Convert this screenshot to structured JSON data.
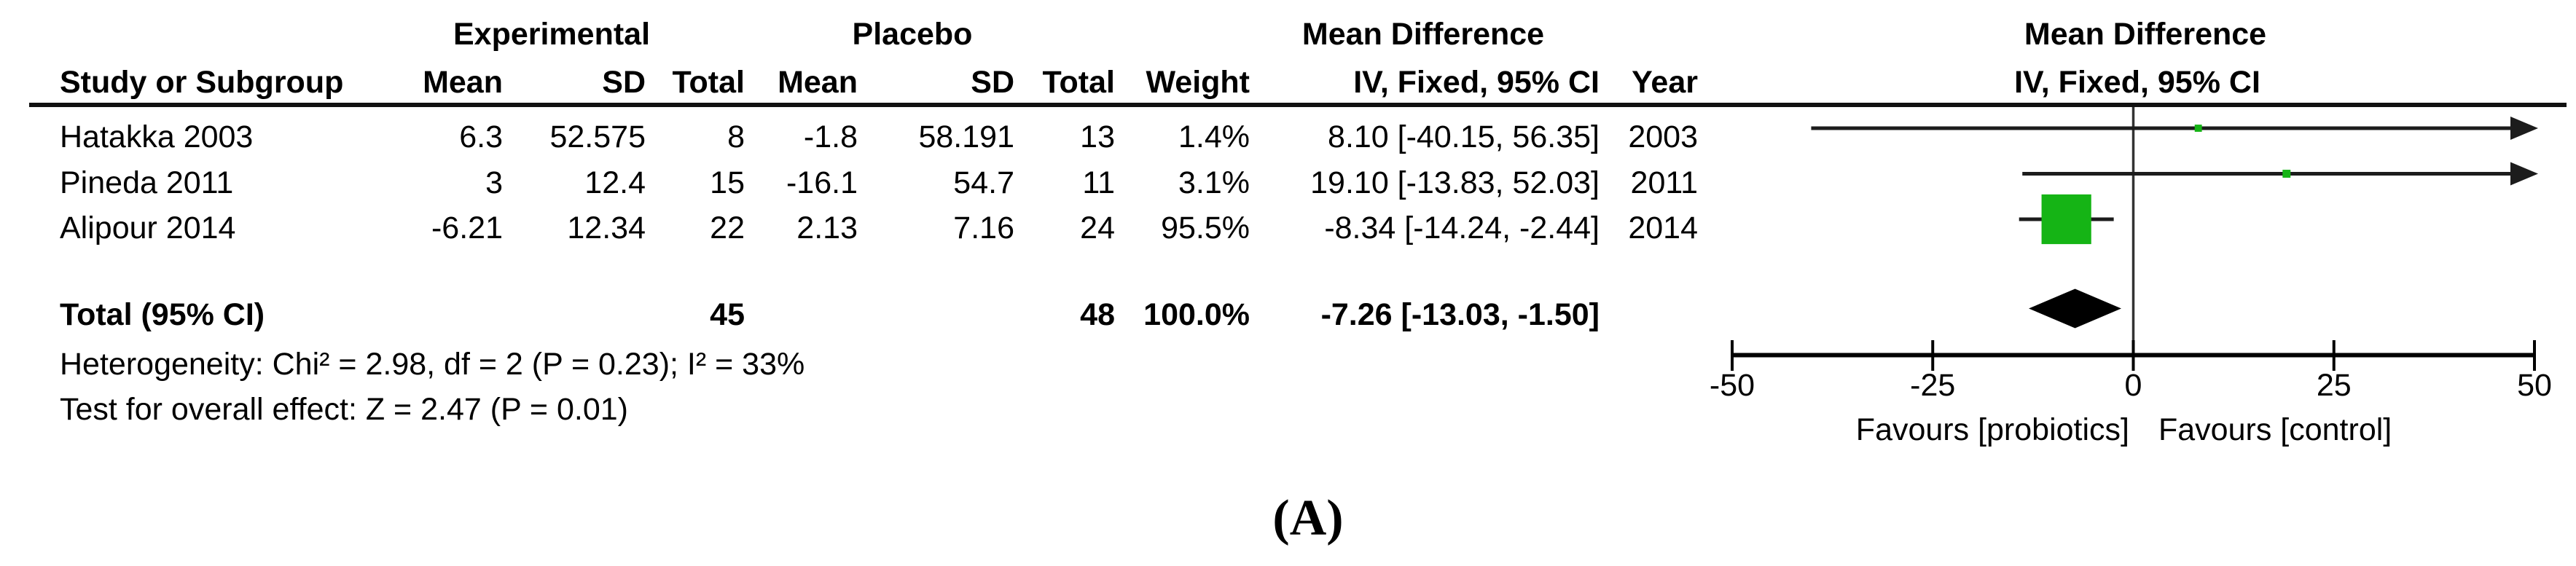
{
  "table": {
    "group_headers": {
      "experimental": "Experimental",
      "placebo": "Placebo",
      "mean_difference": "Mean Difference",
      "mean_difference_plot": "Mean Difference"
    },
    "columns": {
      "study": "Study or Subgroup",
      "mean1": "Mean",
      "sd1": "SD",
      "total1": "Total",
      "mean2": "Mean",
      "sd2": "SD",
      "total2": "Total",
      "weight": "Weight",
      "ci": "IV, Fixed, 95% CI",
      "year": "Year",
      "ci_plot": "IV, Fixed, 95% CI"
    },
    "rows": [
      {
        "study": "Hatakka 2003",
        "mean1": "6.3",
        "sd1": "52.575",
        "total1": "8",
        "mean2": "-1.8",
        "sd2": "58.191",
        "total2": "13",
        "weight": "1.4%",
        "ci": "8.10 [-40.15, 56.35]",
        "year": "2003"
      },
      {
        "study": "Pineda 2011",
        "mean1": "3",
        "sd1": "12.4",
        "total1": "15",
        "mean2": "-16.1",
        "sd2": "54.7",
        "total2": "11",
        "weight": "3.1%",
        "ci": "19.10 [-13.83, 52.03]",
        "year": "2011"
      },
      {
        "study": "Alipour 2014",
        "mean1": "-6.21",
        "sd1": "12.34",
        "total1": "22",
        "mean2": "2.13",
        "sd2": "7.16",
        "total2": "24",
        "weight": "95.5%",
        "ci": "-8.34 [-14.24, -2.44]",
        "year": "2014"
      }
    ],
    "total_row": {
      "label": "Total (95% CI)",
      "total1": "45",
      "total2": "48",
      "weight": "100.0%",
      "ci": "-7.26 [-13.03, -1.50]"
    },
    "footnotes": {
      "heterogeneity": "Heterogeneity: Chi² = 2.98, df = 2 (P = 0.23); I² = 33%",
      "overall_effect": "Test for overall effect: Z = 2.47 (P = 0.01)"
    }
  },
  "figure_label": "(A)",
  "colors": {
    "marker_green": "#15b415",
    "line_black": "#1c1c1c"
  },
  "chart_data": {
    "type": "forest",
    "effect_measure": "Mean Difference",
    "model": "IV, Fixed, 95% CI",
    "studies": [
      {
        "name": "Hatakka 2003",
        "year": 2003,
        "estimate": 8.1,
        "ci_low": -40.15,
        "ci_high": 56.35,
        "weight_pct": 1.4,
        "experimental": {
          "mean": 6.3,
          "sd": 52.575,
          "total": 8
        },
        "placebo": {
          "mean": -1.8,
          "sd": 58.191,
          "total": 13
        }
      },
      {
        "name": "Pineda 2011",
        "year": 2011,
        "estimate": 19.1,
        "ci_low": -13.83,
        "ci_high": 52.03,
        "weight_pct": 3.1,
        "experimental": {
          "mean": 3,
          "sd": 12.4,
          "total": 15
        },
        "placebo": {
          "mean": -16.1,
          "sd": 54.7,
          "total": 11
        }
      },
      {
        "name": "Alipour 2014",
        "year": 2014,
        "estimate": -8.34,
        "ci_low": -14.24,
        "ci_high": -2.44,
        "weight_pct": 95.5,
        "experimental": {
          "mean": -6.21,
          "sd": 12.34,
          "total": 22
        },
        "placebo": {
          "mean": 2.13,
          "sd": 7.16,
          "total": 24
        }
      }
    ],
    "total": {
      "estimate": -7.26,
      "ci_low": -13.03,
      "ci_high": -1.5,
      "weight_pct": 100.0,
      "experimental_total": 45,
      "placebo_total": 48
    },
    "heterogeneity": {
      "chi2": 2.98,
      "df": 2,
      "p": 0.23,
      "i2_pct": 33
    },
    "overall_effect": {
      "z": 2.47,
      "p": 0.01
    },
    "axis": {
      "xlim": [
        -50,
        50
      ],
      "ticks": [
        -50,
        -25,
        0,
        25,
        50
      ],
      "favours_left": "Favours [probiotics]",
      "favours_right": "Favours [control]"
    }
  }
}
